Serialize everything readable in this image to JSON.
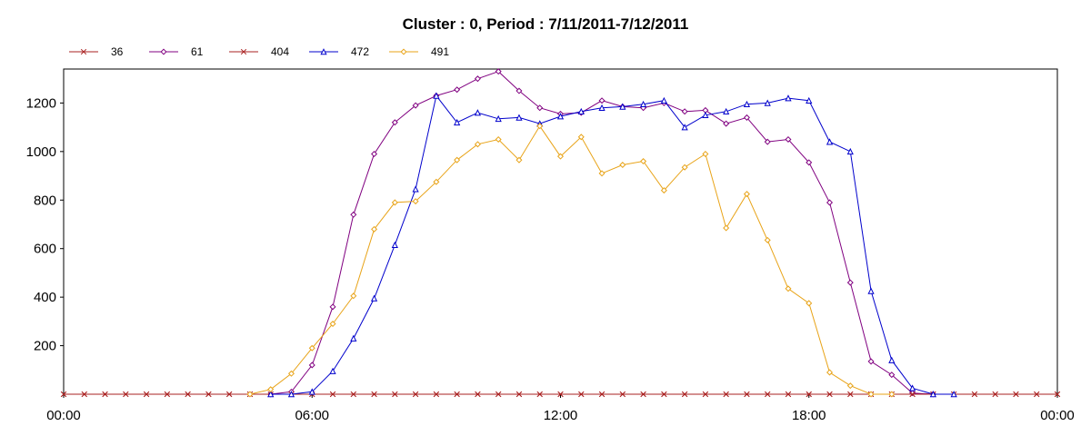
{
  "chart_data": {
    "type": "line",
    "title": "Cluster : 0, Period : 7/11/2011-7/12/2011",
    "xlabel": "",
    "ylabel": "",
    "x_ticks": [
      "00:00",
      "06:00",
      "12:00",
      "18:00",
      "00:00"
    ],
    "y_ticks": [
      "200",
      "400",
      "600",
      "800",
      "1000",
      "1200"
    ],
    "xlim_hours": [
      0,
      24
    ],
    "ylim": [
      0,
      1340
    ],
    "grid": true,
    "legend_position": "top-left",
    "series": [
      {
        "name": "36",
        "color": "#aa2222",
        "marker": "x",
        "x": [
          0,
          0.5,
          1,
          1.5,
          2,
          2.5,
          3,
          3.5,
          4,
          4.5,
          5,
          5.5,
          6,
          6.5,
          7,
          7.5,
          8,
          8.5,
          9,
          9.5,
          10,
          10.5,
          11,
          11.5,
          12,
          12.5,
          13,
          13.5,
          14,
          14.5,
          15,
          15.5,
          16,
          16.5,
          17,
          17.5,
          18,
          18.5,
          19,
          19.5,
          20,
          20.5,
          21,
          21.5,
          22,
          22.5,
          23,
          23.5,
          24
        ],
        "y": [
          0,
          0,
          0,
          0,
          0,
          0,
          0,
          0,
          0,
          0,
          0,
          0,
          0,
          0,
          0,
          0,
          0,
          0,
          0,
          0,
          0,
          0,
          0,
          0,
          0,
          0,
          0,
          0,
          0,
          0,
          0,
          0,
          0,
          0,
          0,
          0,
          0,
          0,
          0,
          0,
          0,
          0,
          0,
          0,
          0,
          0,
          0,
          0,
          0
        ]
      },
      {
        "name": "61",
        "color": "#800080",
        "marker": "diamond",
        "x": [
          5,
          5.5,
          6,
          6.5,
          7,
          7.5,
          8,
          8.5,
          9,
          9.5,
          10,
          10.5,
          11,
          11.5,
          12,
          12.5,
          13,
          13.5,
          14,
          14.5,
          15,
          15.5,
          16,
          16.5,
          17,
          17.5,
          18,
          18.5,
          19,
          19.5,
          20,
          20.5,
          21
        ],
        "y": [
          0,
          10,
          120,
          360,
          740,
          990,
          1120,
          1190,
          1230,
          1255,
          1300,
          1330,
          1250,
          1180,
          1155,
          1160,
          1210,
          1185,
          1180,
          1200,
          1165,
          1170,
          1115,
          1140,
          1040,
          1050,
          955,
          790,
          460,
          135,
          80,
          5,
          0
        ]
      },
      {
        "name": "404",
        "color": "#aa2222",
        "marker": "x",
        "x": [
          0,
          0.5,
          1,
          1.5,
          2,
          2.5,
          3,
          3.5,
          4,
          4.5,
          5,
          5.5,
          6,
          6.5,
          7,
          7.5,
          8,
          8.5,
          9,
          9.5,
          10,
          10.5,
          11,
          11.5,
          12,
          12.5,
          13,
          13.5,
          14,
          14.5,
          15,
          15.5,
          16,
          16.5,
          17,
          17.5,
          18,
          18.5,
          19,
          19.5,
          20,
          20.5,
          21,
          21.5,
          22,
          22.5,
          23,
          23.5,
          24
        ],
        "y": [
          0,
          0,
          0,
          0,
          0,
          0,
          0,
          0,
          0,
          0,
          0,
          0,
          0,
          0,
          0,
          0,
          0,
          0,
          0,
          0,
          0,
          0,
          0,
          0,
          0,
          0,
          0,
          0,
          0,
          0,
          0,
          0,
          0,
          0,
          0,
          0,
          0,
          0,
          0,
          0,
          0,
          0,
          0,
          0,
          0,
          0,
          0,
          0,
          0
        ]
      },
      {
        "name": "472",
        "color": "#0000cc",
        "marker": "triangle",
        "x": [
          5,
          5.5,
          6,
          6.5,
          7,
          7.5,
          8,
          8.5,
          9,
          9.5,
          10,
          10.5,
          11,
          11.5,
          12,
          12.5,
          13,
          13.5,
          14,
          14.5,
          15,
          15.5,
          16,
          16.5,
          17,
          17.5,
          18,
          18.5,
          19,
          19.5,
          20,
          20.5,
          21,
          21.5
        ],
        "y": [
          0,
          0,
          10,
          95,
          230,
          395,
          615,
          845,
          1230,
          1120,
          1160,
          1135,
          1140,
          1115,
          1145,
          1165,
          1180,
          1185,
          1195,
          1210,
          1100,
          1150,
          1165,
          1195,
          1200,
          1220,
          1210,
          1040,
          1000,
          425,
          140,
          25,
          0,
          0
        ]
      },
      {
        "name": "491",
        "color": "#e8a317",
        "marker": "diamond",
        "x": [
          4.5,
          5,
          5.5,
          6,
          6.5,
          7,
          7.5,
          8,
          8.5,
          9,
          9.5,
          10,
          10.5,
          11,
          11.5,
          12,
          12.5,
          13,
          13.5,
          14,
          14.5,
          15,
          15.5,
          16,
          16.5,
          17,
          17.5,
          18,
          18.5,
          19,
          19.5,
          20
        ],
        "y": [
          0,
          20,
          85,
          190,
          290,
          405,
          680,
          790,
          795,
          875,
          965,
          1030,
          1050,
          965,
          1105,
          980,
          1060,
          910,
          945,
          960,
          840,
          935,
          990,
          685,
          825,
          635,
          435,
          375,
          90,
          35,
          0,
          0
        ]
      }
    ]
  }
}
